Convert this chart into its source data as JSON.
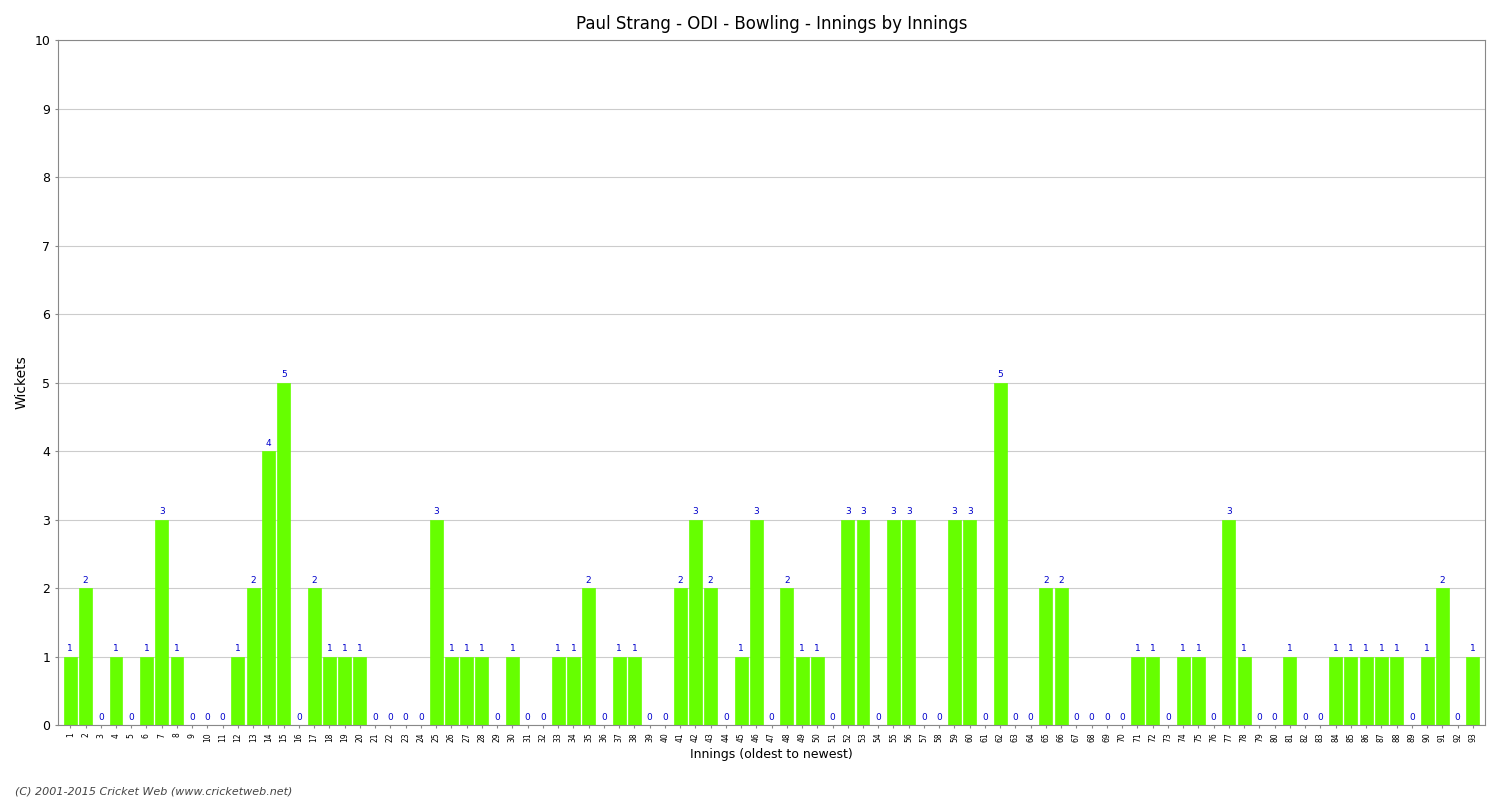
{
  "title": "Paul Strang - ODI - Bowling - Innings by Innings",
  "xlabel": "Innings (oldest to newest)",
  "ylabel": "Wickets",
  "bar_color": "#66ff00",
  "bar_edge_color": "#66ff00",
  "label_color": "#0000cc",
  "background_color": "#ffffff",
  "ylim": [
    0,
    10
  ],
  "yticks": [
    0,
    1,
    2,
    3,
    4,
    5,
    6,
    7,
    8,
    9,
    10
  ],
  "wickets": [
    1,
    2,
    0,
    1,
    0,
    1,
    3,
    1,
    0,
    0,
    0,
    1,
    2,
    4,
    5,
    0,
    2,
    1,
    1,
    1,
    0,
    0,
    0,
    0,
    3,
    1,
    1,
    1,
    0,
    1,
    0,
    0,
    1,
    1,
    2,
    0,
    1,
    1,
    0,
    0,
    2,
    3,
    2,
    0,
    1,
    3,
    0,
    2,
    1,
    1,
    0,
    3,
    3,
    0,
    3,
    3,
    0,
    0,
    3,
    3,
    0,
    5,
    0,
    0,
    2,
    2,
    0,
    0,
    0,
    0,
    1,
    1,
    0,
    1,
    1,
    0,
    3,
    1,
    0,
    0,
    1,
    0,
    0,
    1,
    1,
    1,
    1,
    1,
    0,
    1,
    2,
    0,
    1
  ],
  "footer": "(C) 2001-2015 Cricket Web (www.cricketweb.net)"
}
